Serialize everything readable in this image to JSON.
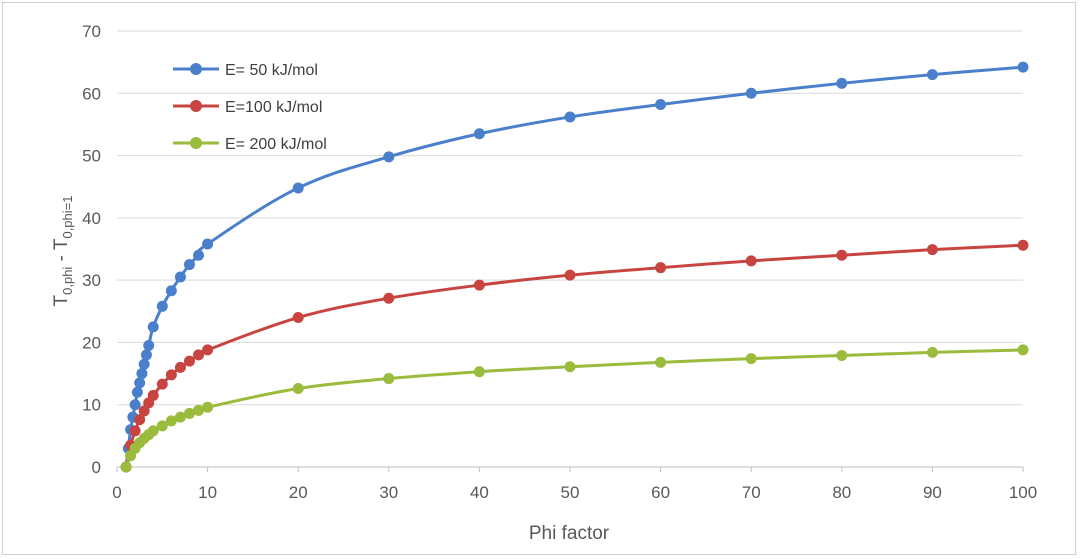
{
  "chart_data": {
    "type": "line",
    "title": "",
    "xlabel": "Phi factor",
    "ylabel": {
      "base": "T",
      "sub1": "0,phi",
      "mid": " - T",
      "sub2": "0,phi=1"
    },
    "xlim": [
      0,
      100
    ],
    "ylim": [
      0,
      70
    ],
    "xticks": [
      0,
      10,
      20,
      30,
      40,
      50,
      60,
      70,
      80,
      90,
      100
    ],
    "yticks": [
      0,
      10,
      20,
      30,
      40,
      50,
      60,
      70
    ],
    "grid": "horizontal",
    "legend_position": "top-left",
    "series": [
      {
        "name": "E= 50 kJ/mol",
        "color": "#4a7fcc",
        "x": [
          1,
          1.25,
          1.5,
          1.75,
          2,
          2.25,
          2.5,
          2.75,
          3,
          3.25,
          3.5,
          4,
          5,
          6,
          7,
          8,
          9,
          10,
          20,
          30,
          40,
          50,
          60,
          70,
          80,
          90,
          100
        ],
        "y": [
          0,
          3,
          6,
          8,
          10,
          12,
          13.5,
          15,
          16.5,
          18,
          19.5,
          22.5,
          25.8,
          28.3,
          30.5,
          32.5,
          34,
          35.8,
          44.8,
          49.8,
          53.5,
          56.2,
          58.2,
          60,
          61.6,
          63,
          64.2
        ]
      },
      {
        "name": "E=100 kJ/mol",
        "color": "#c74440",
        "x": [
          1,
          1.5,
          2,
          2.5,
          3,
          3.5,
          4,
          5,
          6,
          7,
          8,
          9,
          10,
          20,
          30,
          40,
          50,
          60,
          70,
          80,
          90,
          100
        ],
        "y": [
          0,
          3.5,
          5.8,
          7.6,
          9,
          10.3,
          11.5,
          13.3,
          14.8,
          16,
          17,
          18,
          18.8,
          24,
          27.1,
          29.2,
          30.8,
          32,
          33.1,
          34,
          34.9,
          35.6
        ]
      },
      {
        "name": "E= 200 kJ/mol",
        "color": "#9bbb3d",
        "x": [
          1,
          1.5,
          2,
          2.5,
          3,
          3.5,
          4,
          5,
          6,
          7,
          8,
          9,
          10,
          20,
          30,
          40,
          50,
          60,
          70,
          80,
          90,
          100
        ],
        "y": [
          0,
          1.8,
          3,
          3.9,
          4.6,
          5.2,
          5.8,
          6.6,
          7.4,
          8,
          8.6,
          9.1,
          9.6,
          12.6,
          14.2,
          15.3,
          16.1,
          16.8,
          17.4,
          17.9,
          18.4,
          18.8
        ]
      }
    ]
  }
}
